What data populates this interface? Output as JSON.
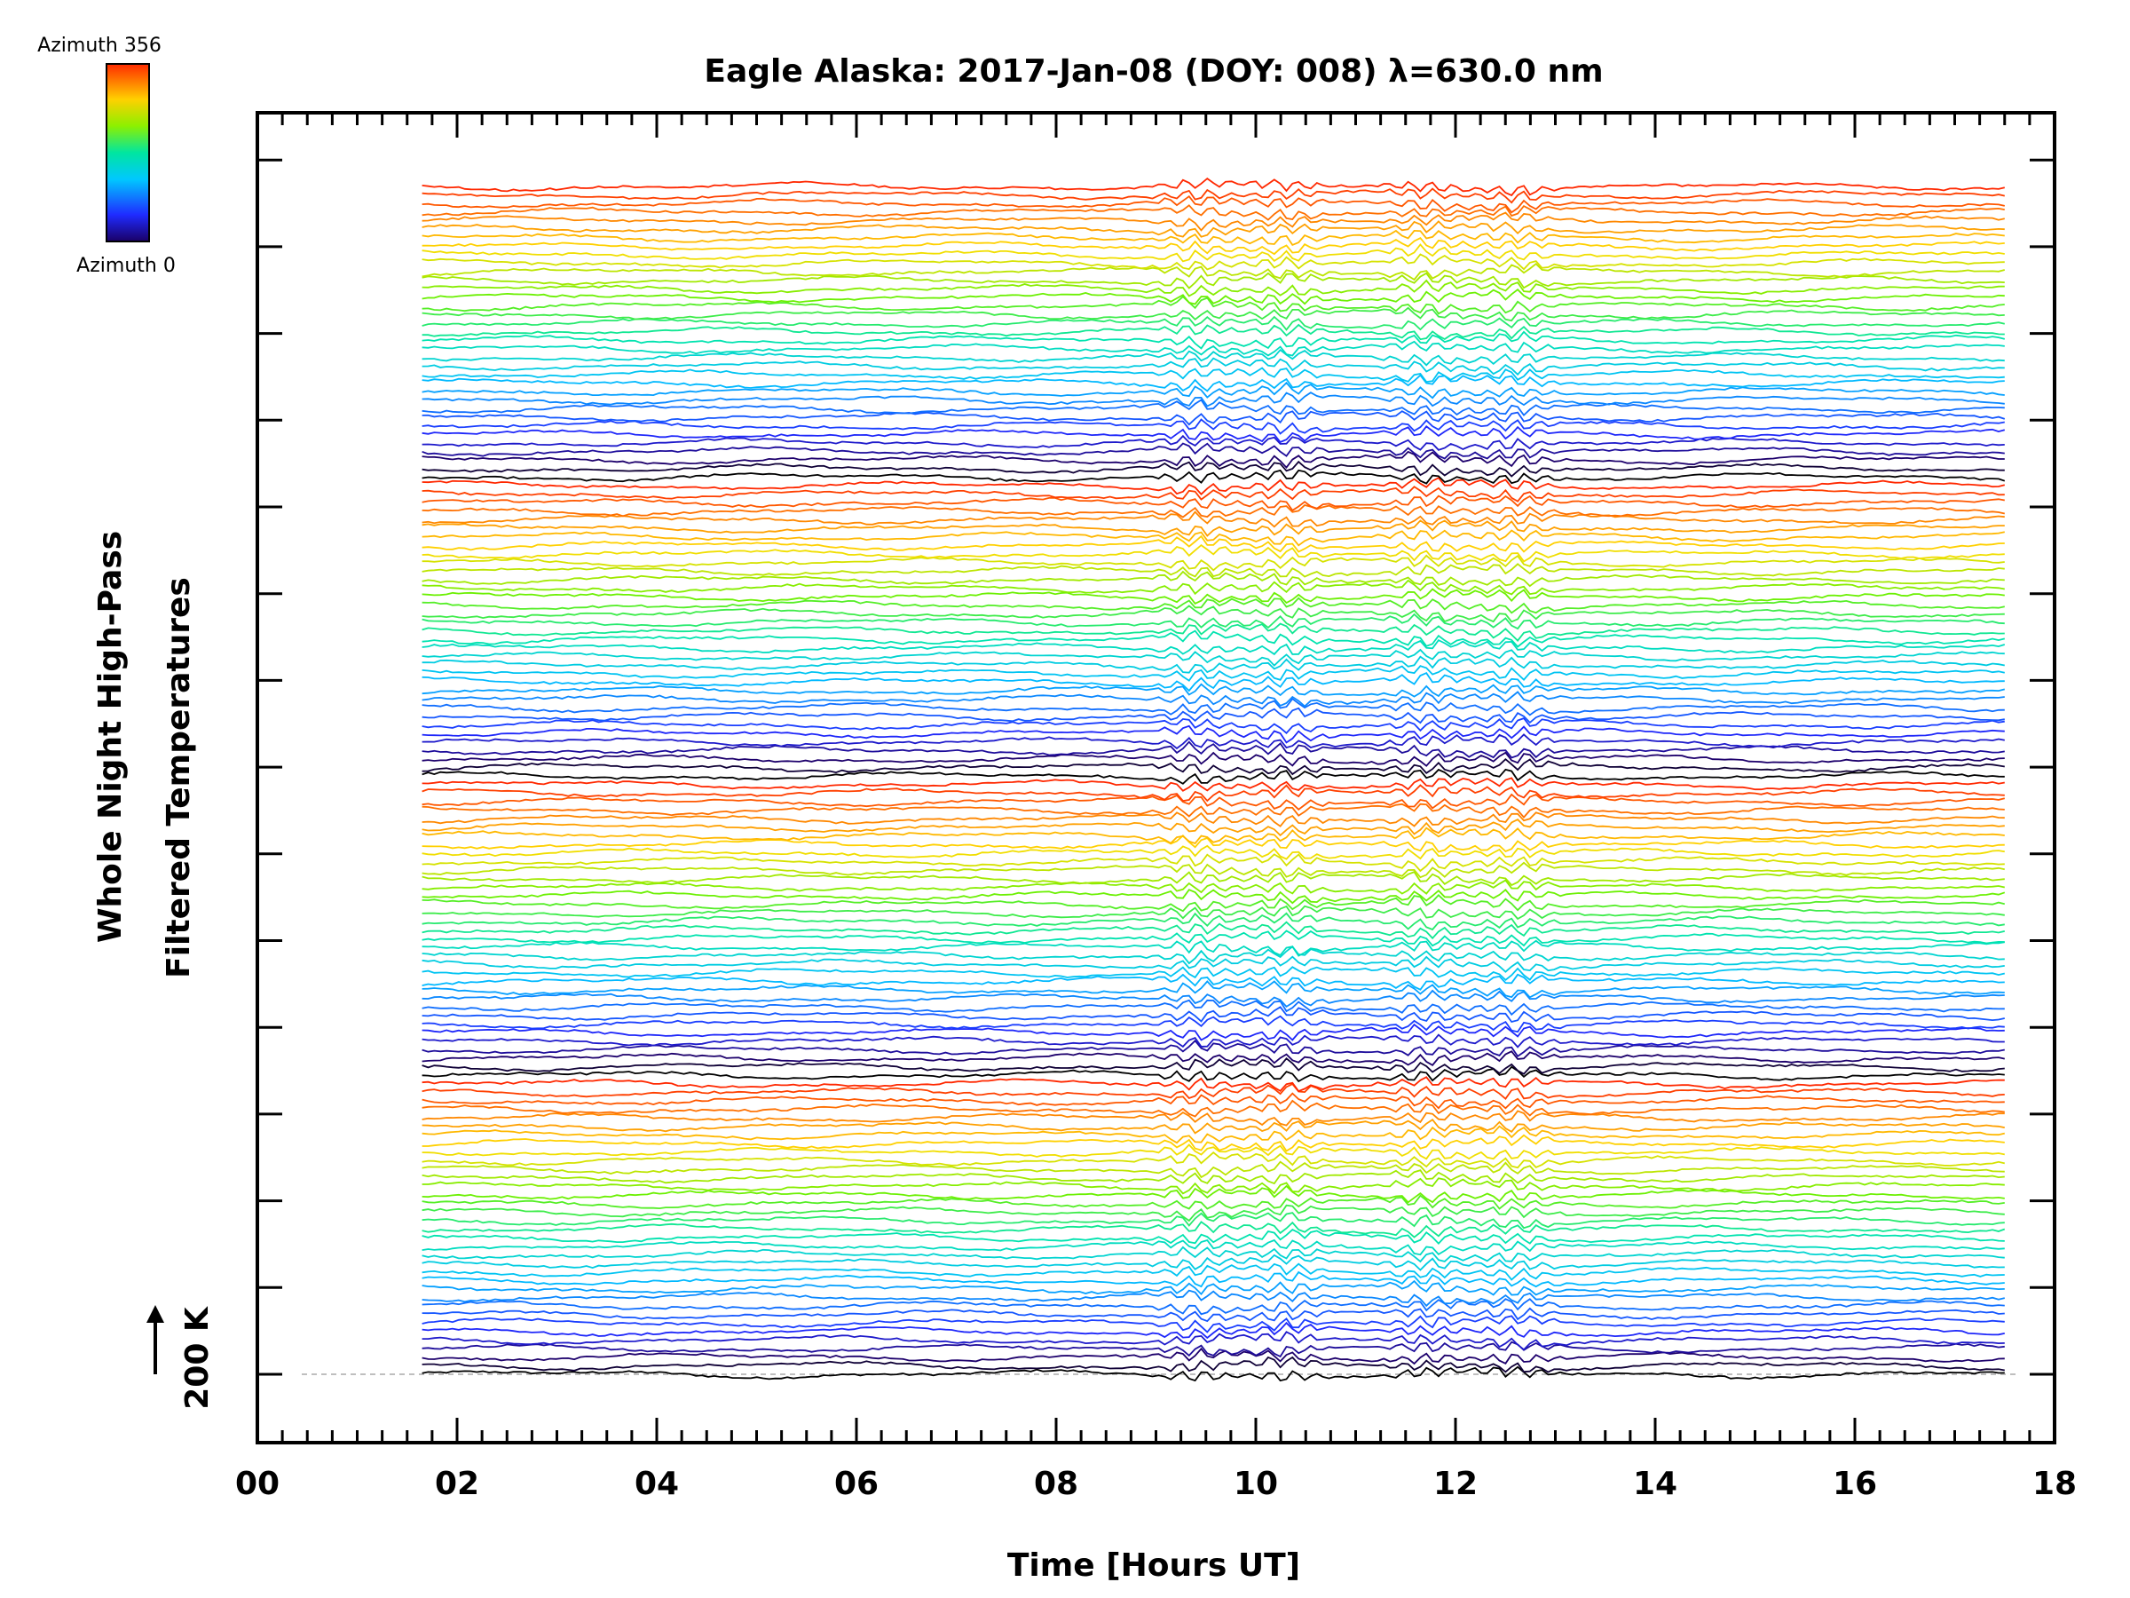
{
  "chart_data": {
    "type": "line",
    "title": "Eagle Alaska: 2017-Jan-08 (DOY: 008) λ=630.0 nm",
    "xlabel": "Time [Hours UT]",
    "ylabel": [
      "Whole Night High-Pass",
      "Filtered Temperatures"
    ],
    "xlim": [
      0,
      18
    ],
    "x_ticks": [
      "00",
      "02",
      "04",
      "06",
      "08",
      "10",
      "12",
      "14",
      "16",
      "18"
    ],
    "scale_bar": {
      "label": "200 K",
      "value_K": 200
    },
    "colorbar": {
      "top_label": "Azimuth 356",
      "bottom_label": "Azimuth 0",
      "colormap": "rainbow"
    },
    "data_time_range": [
      1.65,
      17.5
    ],
    "series_count": 140,
    "stacked_offset": true,
    "features": [
      {
        "time": 9.4,
        "note": "strong wave disturbance"
      },
      {
        "time": 10.3,
        "note": "disturbance"
      },
      {
        "time": 11.7,
        "note": "disturbance"
      },
      {
        "time": 12.6,
        "note": "disturbance"
      }
    ]
  }
}
